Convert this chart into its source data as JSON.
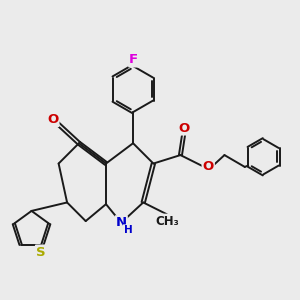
{
  "bg_color": "#ebebeb",
  "bond_color": "#1a1a1a",
  "bond_width": 1.4,
  "atom_colors": {
    "F": "#dd00dd",
    "O": "#cc0000",
    "N": "#0000cc",
    "S": "#aaaa00"
  },
  "font_size": 9.5,
  "small_font": 8.5
}
